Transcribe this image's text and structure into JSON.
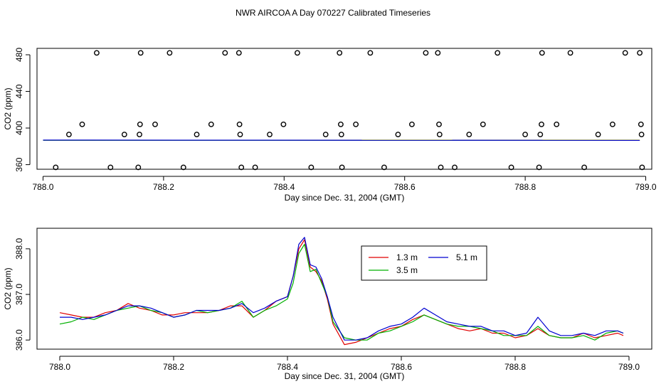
{
  "page_title": "NWR AIRCOA A  Day 070227  Calibrated Timeseries",
  "colors": {
    "red": "#e00000",
    "green": "#00b000",
    "blue": "#0000d0",
    "black": "#000000"
  },
  "chart_data": [
    {
      "type": "scatter",
      "title": "",
      "xlabel": "Day since Dec. 31, 2004 (GMT)",
      "ylabel": "CO2 (ppm)",
      "xlim": [
        787.99,
        789.01
      ],
      "ylim": [
        355,
        487
      ],
      "x_ticks": [
        788.0,
        788.2,
        788.4,
        788.6,
        788.8,
        789.0
      ],
      "x_tick_labels": [
        "788.0",
        "788.2",
        "788.4",
        "788.6",
        "788.8",
        "789.0"
      ],
      "y_ticks": [
        360,
        400,
        440,
        480
      ],
      "y_tick_labels": [
        "360",
        "400",
        "440",
        "480"
      ],
      "points_x": [
        788.021,
        788.043,
        788.065,
        788.089,
        788.112,
        788.135,
        788.158,
        788.16,
        788.161,
        788.162,
        788.186,
        788.21,
        788.233,
        788.255,
        788.279,
        788.302,
        788.325,
        788.326,
        788.327,
        788.329,
        788.352,
        788.376,
        788.399,
        788.422,
        788.445,
        788.469,
        788.492,
        788.494,
        788.495,
        788.496,
        788.519,
        788.543,
        788.566,
        788.589,
        788.612,
        788.635,
        788.655,
        788.657,
        788.658,
        788.66,
        788.683,
        788.707,
        788.73,
        788.754,
        788.777,
        788.8,
        788.823,
        788.825,
        788.827,
        788.828,
        788.852,
        788.875,
        788.898,
        788.921,
        788.945,
        788.966,
        788.99,
        788.992,
        788.993,
        788.994
      ],
      "points_y": [
        357,
        393,
        404,
        482,
        357,
        393,
        357,
        393,
        404,
        482,
        404,
        482,
        357,
        393,
        404,
        482,
        482,
        404,
        393,
        357,
        357,
        393,
        404,
        482,
        357,
        393,
        482,
        404,
        393,
        357,
        404,
        482,
        357,
        393,
        404,
        482,
        482,
        404,
        393,
        357,
        357,
        393,
        404,
        482,
        357,
        393,
        357,
        393,
        404,
        482,
        404,
        482,
        357,
        393,
        404,
        482,
        482,
        404,
        393,
        357
      ],
      "series": [
        {
          "name": "1.3 m",
          "color": "#e00000",
          "x": [
            788.0,
            788.99
          ],
          "values": [
            386.7,
            386.7
          ]
        },
        {
          "name": "3.5 m",
          "color": "#00b000",
          "x": [
            788.0,
            788.99
          ],
          "values": [
            386.6,
            386.6
          ]
        },
        {
          "name": "5.1 m",
          "color": "#0000d0",
          "x": [
            788.0,
            788.99
          ],
          "values": [
            386.8,
            386.5
          ]
        }
      ]
    },
    {
      "type": "line",
      "title": "",
      "xlabel": "Day since Dec. 31, 2004 (GMT)",
      "ylabel": "CO2 (ppm)",
      "xlim": [
        787.96,
        789.04
      ],
      "ylim": [
        385.8,
        388.45
      ],
      "x_ticks": [
        788.0,
        788.2,
        788.4,
        788.6,
        788.8,
        789.0
      ],
      "x_tick_labels": [
        "788.0",
        "788.2",
        "788.4",
        "788.6",
        "788.8",
        "789.0"
      ],
      "y_ticks": [
        386.0,
        387.0,
        388.0
      ],
      "y_tick_labels": [
        "386.0",
        "387.0",
        "388.0"
      ],
      "legend": {
        "position": "top-right",
        "entries": [
          "1.3 m",
          "3.5 m",
          "5.1 m"
        ]
      },
      "x": [
        788.0,
        788.02,
        788.04,
        788.06,
        788.08,
        788.1,
        788.12,
        788.14,
        788.16,
        788.18,
        788.2,
        788.22,
        788.24,
        788.26,
        788.28,
        788.3,
        788.32,
        788.34,
        788.36,
        788.38,
        788.4,
        788.41,
        788.42,
        788.43,
        788.44,
        788.45,
        788.46,
        788.47,
        788.48,
        788.5,
        788.52,
        788.54,
        788.56,
        788.58,
        788.6,
        788.62,
        788.64,
        788.66,
        788.68,
        788.7,
        788.72,
        788.74,
        788.76,
        788.78,
        788.8,
        788.82,
        788.84,
        788.86,
        788.88,
        788.9,
        788.92,
        788.94,
        788.96,
        788.98,
        788.99
      ],
      "series": [
        {
          "name": "1.3 m",
          "color": "#e00000",
          "values": [
            386.6,
            386.55,
            386.5,
            386.5,
            386.6,
            386.65,
            386.8,
            386.7,
            386.65,
            386.55,
            386.55,
            386.6,
            386.6,
            386.6,
            386.65,
            386.75,
            386.75,
            386.5,
            386.65,
            386.85,
            386.95,
            387.4,
            388.0,
            388.2,
            387.6,
            387.5,
            387.3,
            386.9,
            386.35,
            385.9,
            385.95,
            386.05,
            386.15,
            386.25,
            386.3,
            386.45,
            386.55,
            386.45,
            386.35,
            386.25,
            386.2,
            386.25,
            386.15,
            386.15,
            386.05,
            386.1,
            386.25,
            386.1,
            386.05,
            386.05,
            386.15,
            386.05,
            386.1,
            386.15,
            386.1
          ]
        },
        {
          "name": "3.5 m",
          "color": "#00b000",
          "values": [
            386.35,
            386.4,
            386.5,
            386.45,
            386.55,
            386.65,
            386.7,
            386.75,
            386.65,
            386.6,
            386.5,
            386.55,
            386.65,
            386.6,
            386.65,
            386.7,
            386.85,
            386.5,
            386.65,
            386.75,
            386.9,
            387.25,
            387.9,
            388.1,
            387.5,
            387.55,
            387.25,
            386.95,
            386.4,
            386.05,
            386.0,
            386.0,
            386.15,
            386.2,
            386.3,
            386.4,
            386.55,
            386.45,
            386.35,
            386.3,
            386.3,
            386.25,
            386.2,
            386.1,
            386.1,
            386.1,
            386.3,
            386.1,
            386.05,
            386.05,
            386.1,
            386.0,
            386.15,
            386.2,
            386.15
          ]
        },
        {
          "name": "5.1 m",
          "color": "#0000d0",
          "values": [
            386.5,
            386.5,
            386.45,
            386.5,
            386.55,
            386.65,
            386.75,
            386.75,
            386.7,
            386.6,
            386.5,
            386.55,
            386.65,
            386.65,
            386.65,
            386.7,
            386.8,
            386.6,
            386.7,
            386.85,
            386.95,
            387.4,
            388.1,
            388.25,
            387.65,
            387.6,
            387.35,
            386.95,
            386.5,
            386.0,
            386.0,
            386.05,
            386.2,
            386.3,
            386.35,
            386.5,
            386.7,
            386.55,
            386.4,
            386.35,
            386.3,
            386.3,
            386.2,
            386.2,
            386.1,
            386.15,
            386.5,
            386.2,
            386.1,
            386.1,
            386.15,
            386.1,
            386.2,
            386.2,
            386.15
          ]
        }
      ]
    }
  ]
}
